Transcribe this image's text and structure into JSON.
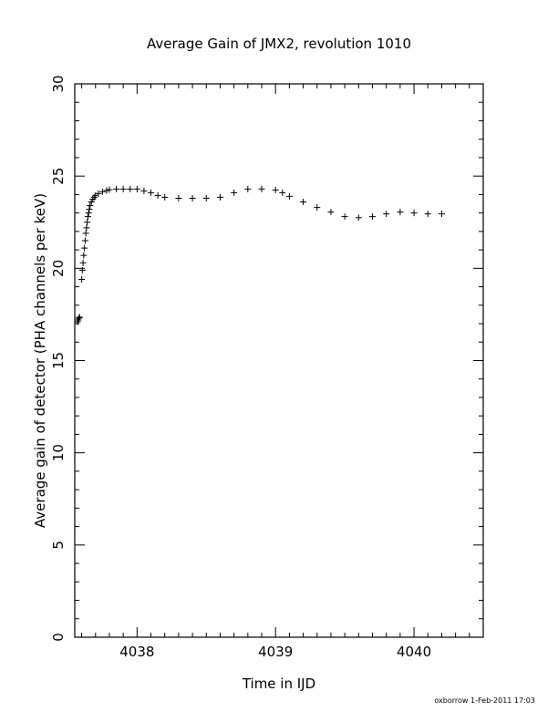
{
  "chart_data": {
    "type": "scatter",
    "title": "Average Gain of JMX2, revolution 1010",
    "xlabel": "Time in IJD",
    "ylabel": "Average gain of detector (PHA channels per keV)",
    "xlim": [
      4037.55,
      4040.5
    ],
    "ylim": [
      0,
      30
    ],
    "xticks": [
      4038,
      4039,
      4040
    ],
    "yticks": [
      0,
      5,
      10,
      15,
      20,
      25,
      30
    ],
    "marker": "plus",
    "grid": false,
    "footer": "oxborrow  1-Feb-2011 17:03",
    "points": [
      [
        4037.57,
        17.1
      ],
      [
        4037.575,
        17.2
      ],
      [
        4037.58,
        17.3
      ],
      [
        4037.585,
        17.35
      ],
      [
        4037.6,
        19.4
      ],
      [
        4037.605,
        19.9
      ],
      [
        4037.61,
        20.3
      ],
      [
        4037.615,
        20.7
      ],
      [
        4037.62,
        21.1
      ],
      [
        4037.625,
        21.5
      ],
      [
        4037.63,
        21.9
      ],
      [
        4037.635,
        22.2
      ],
      [
        4037.64,
        22.5
      ],
      [
        4037.645,
        22.8
      ],
      [
        4037.65,
        23.0
      ],
      [
        4037.655,
        23.2
      ],
      [
        4037.66,
        23.4
      ],
      [
        4037.67,
        23.6
      ],
      [
        4037.68,
        23.75
      ],
      [
        4037.69,
        23.85
      ],
      [
        4037.7,
        23.95
      ],
      [
        4037.72,
        24.05
      ],
      [
        4037.75,
        24.15
      ],
      [
        4037.78,
        24.22
      ],
      [
        4037.8,
        24.26
      ],
      [
        4037.85,
        24.3
      ],
      [
        4037.9,
        24.3
      ],
      [
        4037.95,
        24.3
      ],
      [
        4038.0,
        24.3
      ],
      [
        4038.05,
        24.2
      ],
      [
        4038.1,
        24.1
      ],
      [
        4038.15,
        23.95
      ],
      [
        4038.2,
        23.85
      ],
      [
        4038.3,
        23.8
      ],
      [
        4038.4,
        23.8
      ],
      [
        4038.5,
        23.8
      ],
      [
        4038.6,
        23.85
      ],
      [
        4038.7,
        24.1
      ],
      [
        4038.8,
        24.3
      ],
      [
        4038.9,
        24.3
      ],
      [
        4039.0,
        24.25
      ],
      [
        4039.05,
        24.1
      ],
      [
        4039.1,
        23.9
      ],
      [
        4039.2,
        23.6
      ],
      [
        4039.3,
        23.3
      ],
      [
        4039.4,
        23.05
      ],
      [
        4039.5,
        22.8
      ],
      [
        4039.6,
        22.75
      ],
      [
        4039.7,
        22.8
      ],
      [
        4039.8,
        22.95
      ],
      [
        4039.9,
        23.05
      ],
      [
        4040.0,
        23.0
      ],
      [
        4040.1,
        22.95
      ],
      [
        4040.2,
        22.95
      ]
    ]
  }
}
